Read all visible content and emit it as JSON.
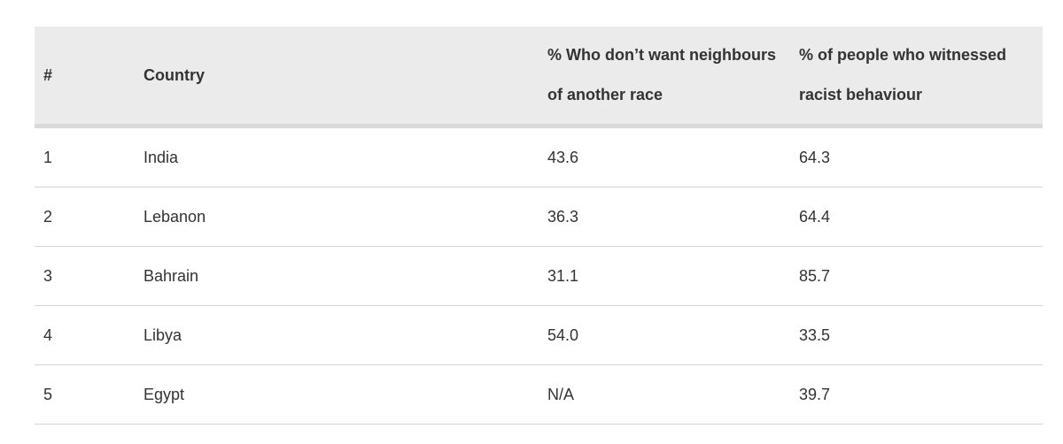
{
  "table": {
    "header": [
      "#",
      "Country",
      "% Who don’t want neighbours of another race",
      "% of people who witnessed racist behaviour"
    ],
    "rows": [
      [
        "1",
        "India",
        "43.6",
        "64.3"
      ],
      [
        "2",
        "Lebanon",
        "36.3",
        "64.4"
      ],
      [
        "3",
        "Bahrain",
        "31.1",
        "85.7"
      ],
      [
        "4",
        "Libya",
        "54.0",
        "33.5"
      ],
      [
        "5",
        "Egypt",
        "N/A",
        "39.7"
      ]
    ]
  }
}
